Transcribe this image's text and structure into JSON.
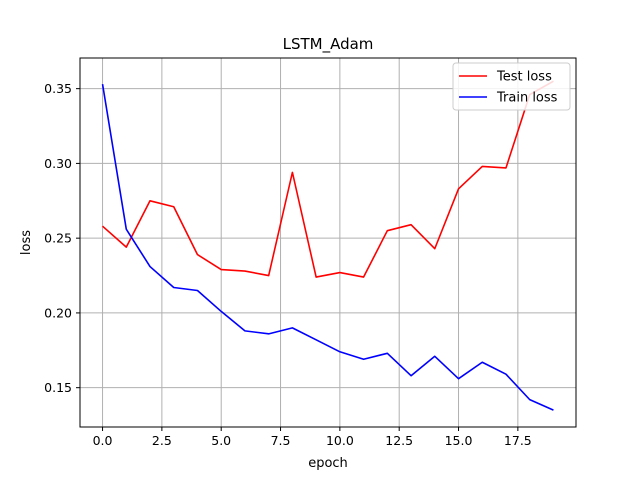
{
  "chart_data": {
    "type": "line",
    "title": "LSTM_Adam",
    "xlabel": "epoch",
    "ylabel": "loss",
    "xlim": [
      -0.95,
      19.95
    ],
    "ylim": [
      0.1237,
      0.3705
    ],
    "grid": true,
    "legend_position": "upper-right",
    "x_ticks": [
      0.0,
      2.5,
      5.0,
      7.5,
      10.0,
      12.5,
      15.0,
      17.5
    ],
    "x_tick_labels": [
      "0.0",
      "2.5",
      "5.0",
      "7.5",
      "10.0",
      "12.5",
      "15.0",
      "17.5"
    ],
    "y_ticks": [
      0.15,
      0.2,
      0.25,
      0.3,
      0.35
    ],
    "y_tick_labels": [
      "0.15",
      "0.20",
      "0.25",
      "0.30",
      "0.35"
    ],
    "x": [
      0,
      1,
      2,
      3,
      4,
      5,
      6,
      7,
      8,
      9,
      10,
      11,
      12,
      13,
      14,
      15,
      16,
      17,
      18,
      19
    ],
    "series": [
      {
        "name": "Test loss",
        "color": "#ff0000",
        "values": [
          0.258,
          0.244,
          0.275,
          0.271,
          0.239,
          0.229,
          0.228,
          0.225,
          0.294,
          0.224,
          0.227,
          0.224,
          0.255,
          0.259,
          0.243,
          0.283,
          0.298,
          0.297,
          0.346,
          0.355
        ]
      },
      {
        "name": "Train loss",
        "color": "#0000ff",
        "values": [
          0.353,
          0.256,
          0.231,
          0.217,
          0.215,
          0.201,
          0.188,
          0.186,
          0.19,
          0.182,
          0.174,
          0.169,
          0.173,
          0.158,
          0.171,
          0.156,
          0.167,
          0.159,
          0.142,
          0.135
        ]
      }
    ]
  }
}
